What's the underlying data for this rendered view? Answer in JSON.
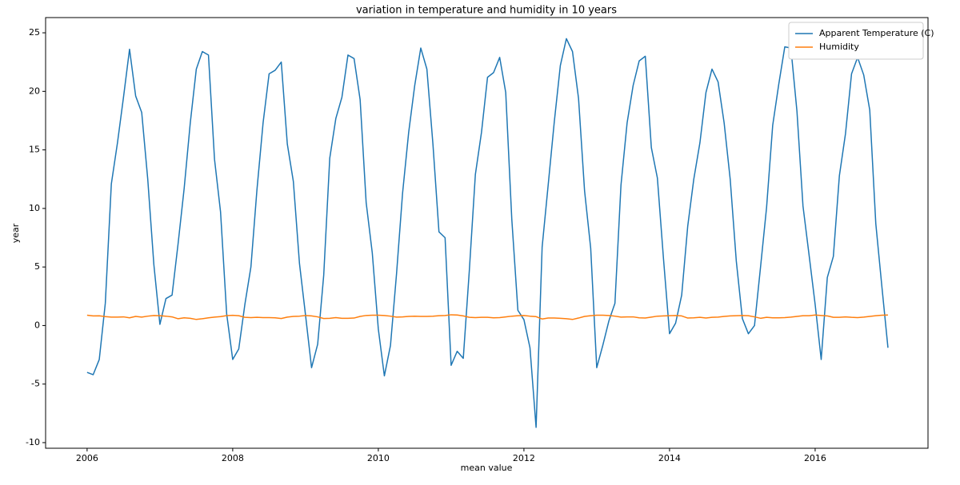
{
  "chart_data": {
    "type": "line",
    "title": "variation in temperature and humidity in 10 years",
    "x_label": "mean value",
    "y_label": "year",
    "x": [
      2006,
      2006.083,
      2006.167,
      2006.25,
      2006.333,
      2006.417,
      2006.5,
      2006.583,
      2006.667,
      2006.75,
      2006.833,
      2006.917,
      2007,
      2007.083,
      2007.167,
      2007.25,
      2007.333,
      2007.417,
      2007.5,
      2007.583,
      2007.667,
      2007.75,
      2007.833,
      2007.917,
      2008,
      2008.083,
      2008.167,
      2008.25,
      2008.333,
      2008.417,
      2008.5,
      2008.583,
      2008.667,
      2008.75,
      2008.833,
      2008.917,
      2009,
      2009.083,
      2009.167,
      2009.25,
      2009.333,
      2009.417,
      2009.5,
      2009.583,
      2009.667,
      2009.75,
      2009.833,
      2009.917,
      2010,
      2010.083,
      2010.167,
      2010.25,
      2010.333,
      2010.417,
      2010.5,
      2010.583,
      2010.667,
      2010.75,
      2010.833,
      2010.917,
      2011,
      2011.083,
      2011.167,
      2011.25,
      2011.333,
      2011.417,
      2011.5,
      2011.583,
      2011.667,
      2011.75,
      2011.833,
      2011.917,
      2012,
      2012.083,
      2012.167,
      2012.25,
      2012.333,
      2012.417,
      2012.5,
      2012.583,
      2012.667,
      2012.75,
      2012.833,
      2012.917,
      2013,
      2013.083,
      2013.167,
      2013.25,
      2013.333,
      2013.417,
      2013.5,
      2013.583,
      2013.667,
      2013.75,
      2013.833,
      2013.917,
      2014,
      2014.083,
      2014.167,
      2014.25,
      2014.333,
      2014.417,
      2014.5,
      2014.583,
      2014.667,
      2014.75,
      2014.833,
      2014.917,
      2015,
      2015.083,
      2015.167,
      2015.25,
      2015.333,
      2015.417,
      2015.5,
      2015.583,
      2015.667,
      2015.75,
      2015.833,
      2015.917,
      2016,
      2016.083,
      2016.167,
      2016.25,
      2016.333,
      2016.417,
      2016.5,
      2016.583,
      2016.667,
      2016.75,
      2016.833,
      2016.917,
      2017
    ],
    "series": [
      {
        "name": "Apparent Temperature (C)",
        "color": "#1f77b4",
        "values": [
          -4.0,
          -4.2,
          -2.9,
          1.9,
          12.1,
          15.6,
          19.5,
          23.6,
          19.6,
          18.2,
          12.5,
          5.2,
          0.1,
          2.3,
          2.6,
          7.0,
          11.7,
          17.3,
          21.9,
          23.4,
          23.1,
          14.2,
          9.7,
          1.0,
          -2.9,
          -2.0,
          1.8,
          5.0,
          11.6,
          17.3,
          21.5,
          21.8,
          22.5,
          15.5,
          12.3,
          5.3,
          0.9,
          -3.6,
          -1.6,
          4.3,
          14.3,
          17.7,
          19.5,
          23.1,
          22.8,
          19.3,
          10.5,
          6.2,
          -0.3,
          -4.3,
          -1.7,
          4.4,
          11.3,
          16.5,
          20.5,
          23.7,
          21.9,
          15.5,
          8.0,
          7.5,
          -3.4,
          -2.2,
          -2.8,
          4.7,
          12.9,
          16.5,
          21.2,
          21.6,
          22.9,
          19.9,
          9.1,
          1.3,
          0.5,
          -1.9,
          -8.7,
          6.7,
          12.0,
          17.4,
          22.2,
          24.5,
          23.4,
          19.4,
          11.5,
          6.6,
          -3.6,
          -1.7,
          0.4,
          1.9,
          12.0,
          17.3,
          20.5,
          22.6,
          23.0,
          15.2,
          12.6,
          5.7,
          -0.7,
          0.2,
          2.6,
          8.5,
          12.5,
          15.6,
          19.9,
          21.9,
          20.8,
          17.3,
          12.5,
          5.5,
          0.6,
          -0.7,
          0.0,
          5.0,
          10.1,
          17.1,
          20.6,
          23.8,
          23.7,
          18.3,
          10.2,
          6.0,
          1.8,
          -2.9,
          4.1,
          5.9,
          12.8,
          16.4,
          21.5,
          22.9,
          21.4,
          18.4,
          8.7,
          3.3,
          -1.9
        ]
      },
      {
        "name": "Humidity",
        "color": "#ff7f0e",
        "values": [
          0.88,
          0.82,
          0.83,
          0.76,
          0.72,
          0.72,
          0.74,
          0.66,
          0.78,
          0.72,
          0.8,
          0.86,
          0.84,
          0.8,
          0.74,
          0.58,
          0.66,
          0.62,
          0.52,
          0.58,
          0.66,
          0.72,
          0.76,
          0.85,
          0.87,
          0.84,
          0.7,
          0.68,
          0.7,
          0.68,
          0.68,
          0.66,
          0.6,
          0.72,
          0.78,
          0.8,
          0.86,
          0.82,
          0.74,
          0.6,
          0.62,
          0.68,
          0.62,
          0.62,
          0.64,
          0.78,
          0.86,
          0.88,
          0.88,
          0.86,
          0.8,
          0.72,
          0.74,
          0.78,
          0.8,
          0.78,
          0.78,
          0.8,
          0.84,
          0.86,
          0.92,
          0.9,
          0.82,
          0.7,
          0.68,
          0.7,
          0.7,
          0.66,
          0.68,
          0.74,
          0.8,
          0.84,
          0.86,
          0.8,
          0.76,
          0.56,
          0.64,
          0.64,
          0.62,
          0.58,
          0.52,
          0.64,
          0.78,
          0.84,
          0.88,
          0.88,
          0.86,
          0.8,
          0.72,
          0.74,
          0.74,
          0.66,
          0.64,
          0.72,
          0.8,
          0.82,
          0.84,
          0.86,
          0.82,
          0.64,
          0.66,
          0.7,
          0.64,
          0.7,
          0.72,
          0.78,
          0.82,
          0.84,
          0.86,
          0.84,
          0.74,
          0.62,
          0.7,
          0.66,
          0.66,
          0.68,
          0.72,
          0.78,
          0.84,
          0.84,
          0.9,
          0.86,
          0.82,
          0.7,
          0.7,
          0.74,
          0.7,
          0.68,
          0.72,
          0.78,
          0.84,
          0.88,
          0.9
        ]
      }
    ],
    "xlim": [
      2005.43,
      2017.55
    ],
    "ylim": [
      -10.48,
      26.3
    ],
    "xticks": [
      2006,
      2008,
      2010,
      2012,
      2014,
      2016
    ],
    "yticks": [
      -10,
      -5,
      0,
      5,
      10,
      15,
      20,
      25
    ],
    "legend": "upper right",
    "grid": false
  }
}
